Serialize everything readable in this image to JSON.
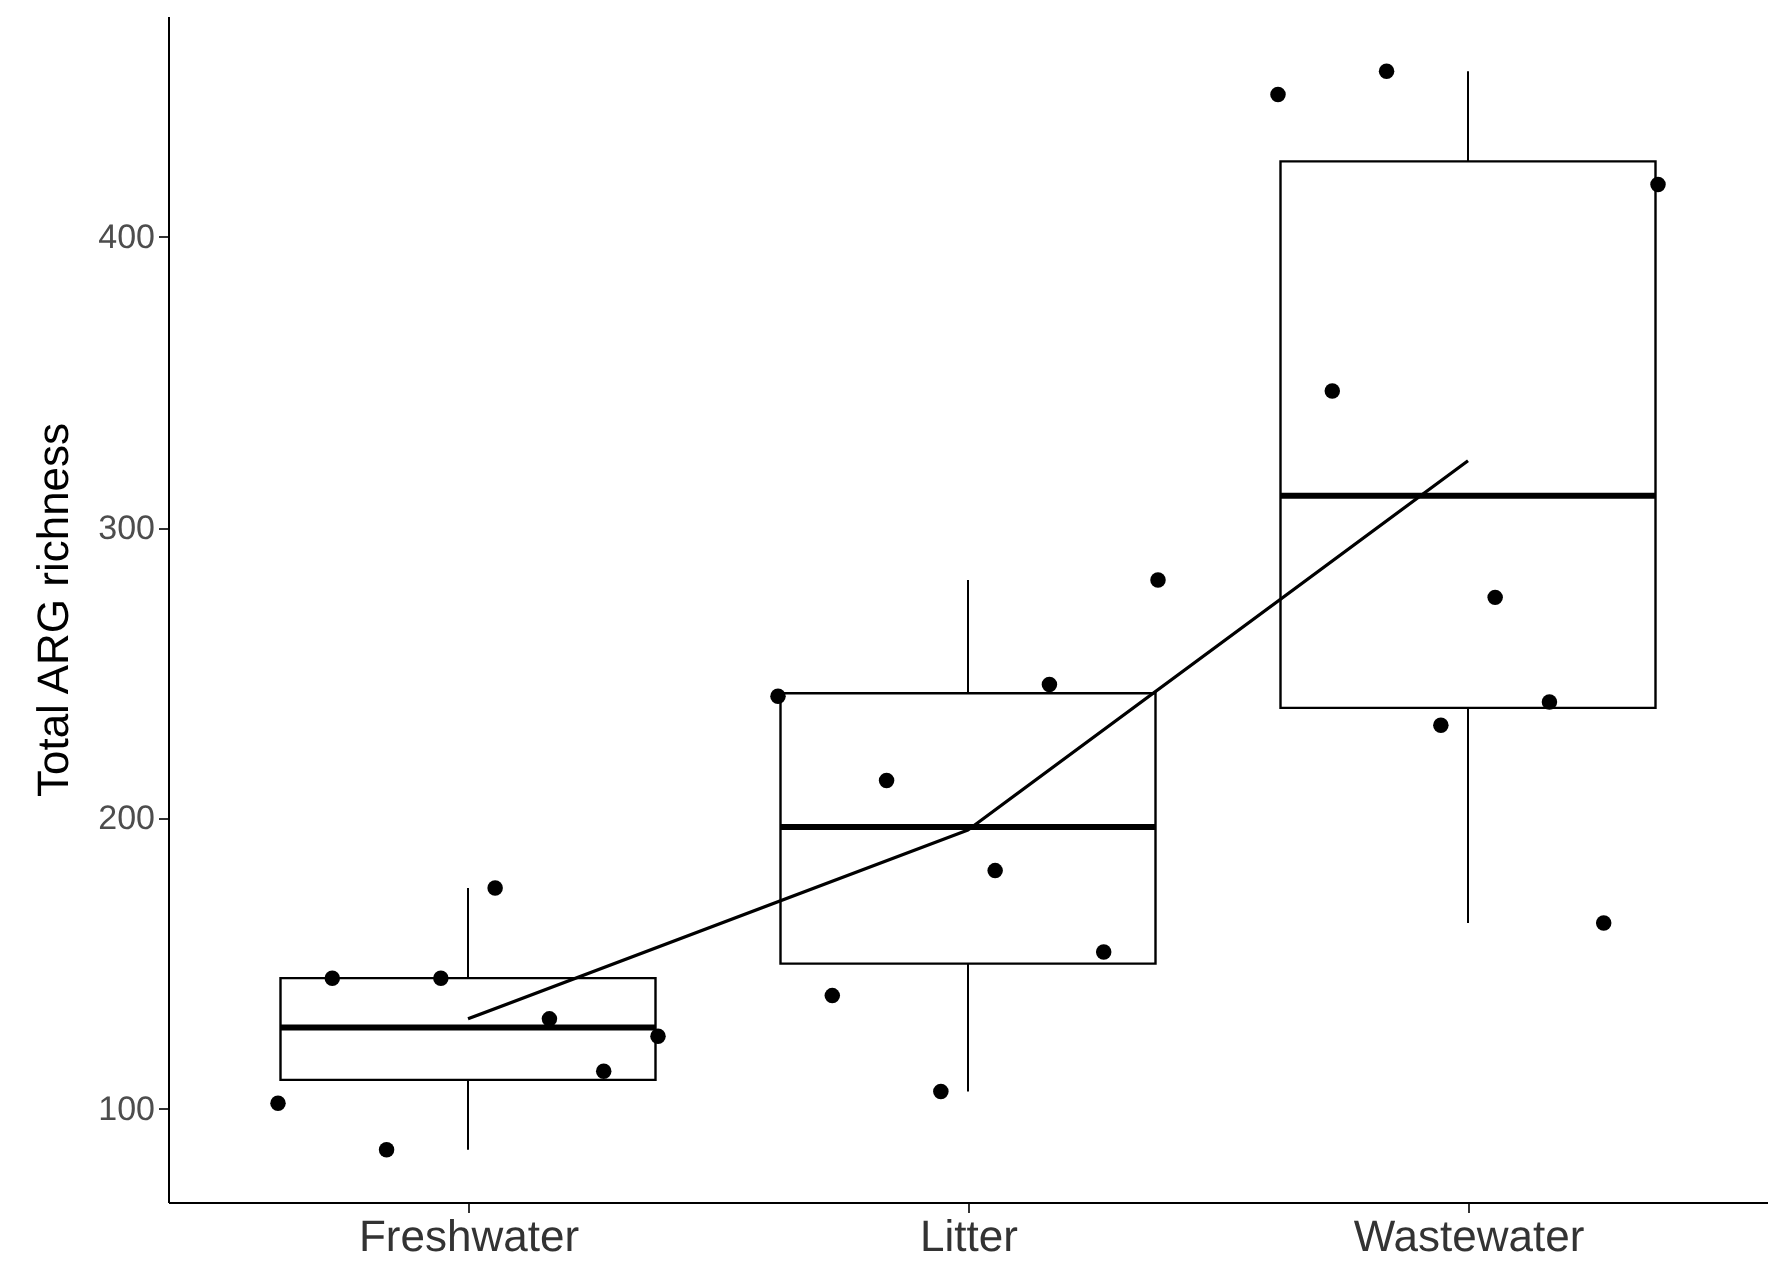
{
  "chart_data": {
    "type": "box",
    "ylabel": "Total ARG richness",
    "categories": [
      "Freshwater",
      "Litter",
      "Wastewater"
    ],
    "boxes": [
      {
        "low": 86,
        "q1": 110,
        "median": 128,
        "q3": 145,
        "high": 176
      },
      {
        "low": 106,
        "q1": 150,
        "median": 197,
        "q3": 243,
        "high": 282
      },
      {
        "low": 164,
        "q1": 238,
        "median": 311,
        "q3": 426,
        "high": 457
      }
    ],
    "series": [
      {
        "type": "scatter",
        "color": "#000000",
        "x": [
          "Freshwater",
          "Freshwater",
          "Freshwater",
          "Freshwater",
          "Freshwater",
          "Freshwater",
          "Freshwater",
          "Freshwater",
          "Litter",
          "Litter",
          "Litter",
          "Litter",
          "Litter",
          "Litter",
          "Litter",
          "Litter",
          "Wastewater",
          "Wastewater",
          "Wastewater",
          "Wastewater",
          "Wastewater",
          "Wastewater",
          "Wastewater",
          "Wastewater"
        ],
        "values": [
          102,
          145,
          86,
          145,
          176,
          131,
          113,
          125,
          242,
          139,
          213,
          106,
          182,
          246,
          154,
          282,
          449,
          347,
          457,
          232,
          276,
          240,
          164,
          418
        ]
      },
      {
        "type": "line",
        "color": "#000000",
        "values": [
          131,
          196,
          323
        ]
      }
    ],
    "ylim": [
      68,
      476
    ],
    "yticks": [
      100,
      200,
      300,
      400
    ],
    "grid": false
  }
}
